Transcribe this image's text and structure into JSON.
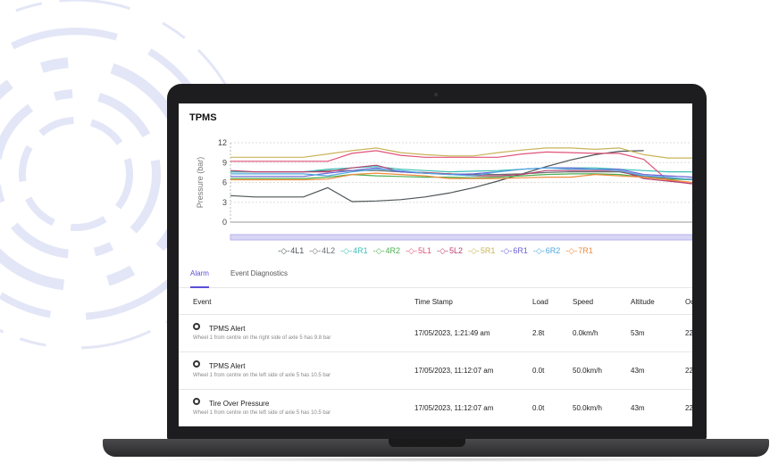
{
  "panel_title": "TPMS",
  "chart_data": {
    "type": "line",
    "title": "",
    "ylabel": "Pressure (bar)",
    "ylim": [
      0,
      12
    ],
    "yticks": [
      0,
      3,
      6,
      9,
      12
    ],
    "grid": true,
    "legend_placement": "bottom",
    "series": [
      {
        "name": "4L1",
        "color": "#4d5557",
        "values": [
          4.0,
          3.8,
          3.8,
          3.8,
          5.2,
          3.1,
          3.2,
          3.4,
          3.8,
          4.4,
          5.2,
          6.2,
          7.3,
          8.4,
          9.4,
          10.2,
          10.7,
          10.8,
          null,
          null
        ]
      },
      {
        "name": "4L2",
        "color": "#6a6f73",
        "values": [
          7.6,
          7.6,
          7.6,
          7.6,
          7.8,
          7.8,
          7.8,
          7.6,
          7.4,
          7.3,
          7.2,
          7.2,
          7.3,
          7.5,
          7.6,
          7.6,
          7.6,
          6.9,
          6.6,
          6.5
        ]
      },
      {
        "name": "4R1",
        "color": "#3bbfb5",
        "values": [
          7.6,
          7.6,
          7.6,
          7.6,
          8.0,
          8.2,
          8.4,
          8.0,
          7.8,
          7.6,
          7.7,
          7.8,
          8.0,
          8.2,
          8.2,
          8.2,
          8.0,
          7.8,
          7.6,
          7.6
        ]
      },
      {
        "name": "4R2",
        "color": "#4caf50",
        "values": [
          6.6,
          6.6,
          6.6,
          6.6,
          6.8,
          7.2,
          7.0,
          6.9,
          6.8,
          6.8,
          6.7,
          6.8,
          7.0,
          7.2,
          7.3,
          7.3,
          7.2,
          6.8,
          6.5,
          6.4
        ]
      },
      {
        "name": "5L1",
        "color": "#e0537a",
        "values": [
          9.2,
          9.2,
          9.2,
          9.2,
          9.2,
          10.4,
          10.8,
          10.1,
          9.8,
          9.8,
          9.8,
          9.8,
          10.3,
          10.6,
          10.5,
          10.4,
          10.4,
          9.5,
          6.3,
          5.8
        ]
      },
      {
        "name": "5L2",
        "color": "#b8406e",
        "values": [
          7.8,
          7.6,
          7.6,
          7.6,
          7.6,
          8.2,
          8.6,
          7.6,
          7.5,
          7.3,
          7.0,
          7.0,
          7.2,
          7.8,
          7.8,
          7.8,
          7.8,
          6.6,
          6.2,
          5.8
        ]
      },
      {
        "name": "5R1",
        "color": "#c9b458",
        "values": [
          9.8,
          9.8,
          9.8,
          9.8,
          10.3,
          10.8,
          11.2,
          10.5,
          10.2,
          10.0,
          10.0,
          10.5,
          10.9,
          11.2,
          11.2,
          11.0,
          11.2,
          10.2,
          9.7,
          9.7
        ]
      },
      {
        "name": "6R1",
        "color": "#6b63d6",
        "values": [
          6.9,
          6.9,
          6.9,
          6.9,
          7.4,
          7.8,
          8.2,
          7.6,
          7.4,
          7.2,
          7.3,
          7.6,
          8.0,
          8.2,
          8.2,
          8.0,
          8.0,
          7.2,
          7.0,
          6.8
        ]
      },
      {
        "name": "6R2",
        "color": "#4ea8de",
        "values": [
          7.3,
          7.3,
          7.3,
          7.3,
          7.0,
          7.6,
          8.0,
          7.8,
          7.4,
          7.2,
          7.0,
          7.6,
          8.0,
          8.2,
          8.0,
          8.0,
          7.8,
          7.0,
          6.8,
          6.4
        ]
      },
      {
        "name": "7R1",
        "color": "#f08a3c",
        "values": [
          6.4,
          6.4,
          6.4,
          6.4,
          6.5,
          7.2,
          7.4,
          7.2,
          7.0,
          6.6,
          6.6,
          6.6,
          6.7,
          6.8,
          6.8,
          7.2,
          7.0,
          6.8,
          6.4,
          6.0
        ]
      }
    ]
  },
  "tabs": [
    {
      "label": "Alarm",
      "active": true
    },
    {
      "label": "Event Diagnostics",
      "active": false
    }
  ],
  "table": {
    "headers": [
      "Event",
      "Time Stamp",
      "Load",
      "Speed",
      "Altitude",
      "Od"
    ],
    "rows": [
      {
        "event": "TPMS Alert",
        "detail": "Wheel 1 from centre on the right side of axle 5 has 9.8 bar",
        "time": "17/05/2023, 1:21:49 am",
        "load": "2.8t",
        "speed": "0.0km/h",
        "altitude": "53m",
        "od": "22"
      },
      {
        "event": "TPMS Alert",
        "detail": "Wheel 1 from centre on the left side of axle 5 has 10.5 bar",
        "time": "17/05/2023, 11:12:07 am",
        "load": "0.0t",
        "speed": "50.0km/h",
        "altitude": "43m",
        "od": "22"
      },
      {
        "event": "Tire Over Pressure",
        "detail": "Wheel 1 from centre on the left side of axle 5 has 10.5 bar",
        "time": "17/05/2023, 11:12:07 am",
        "load": "0.0t",
        "speed": "50.0km/h",
        "altitude": "43m",
        "od": "22"
      }
    ]
  }
}
